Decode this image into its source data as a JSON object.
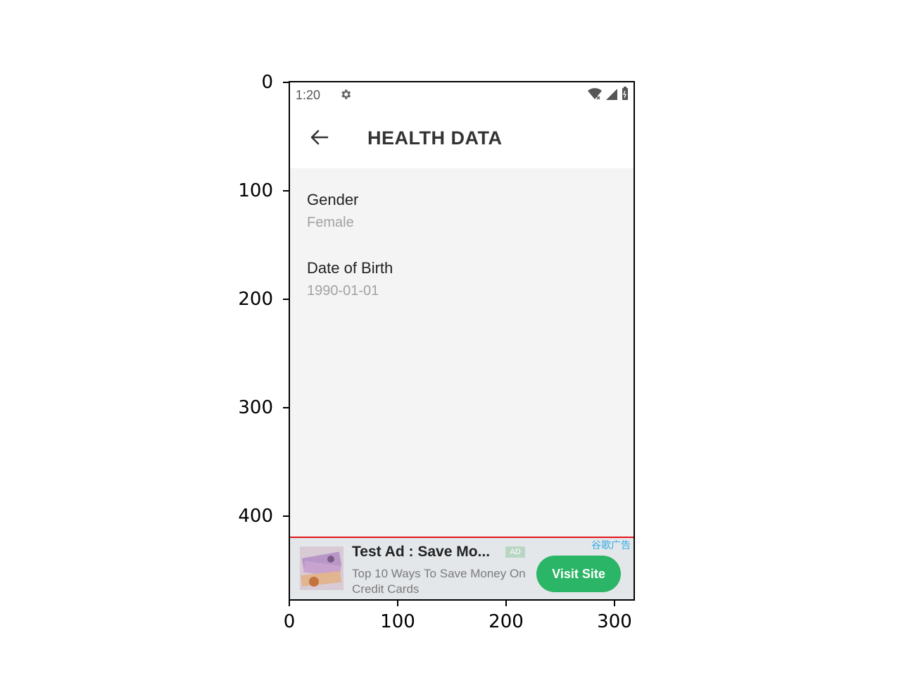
{
  "status_bar": {
    "time": "1:20",
    "icons": [
      "gear-icon",
      "wifi-icon",
      "cellular-signal-icon",
      "battery-icon"
    ]
  },
  "app_bar": {
    "title": "HEALTH DATA",
    "back_icon": "arrow-left-icon"
  },
  "fields": [
    {
      "label": "Gender",
      "value": "Female"
    },
    {
      "label": "Date of Birth",
      "value": "1990-01-01"
    }
  ],
  "ad": {
    "title": "Test Ad : Save Mo...",
    "badge": "AD",
    "tag": "谷歌广告",
    "description": "Top 10 Ways To Save Money On Credit Cards",
    "button": "Visit Site",
    "button_color": "#2bb566"
  },
  "plot_axes": {
    "y_ticks": [
      "0",
      "100",
      "200",
      "300",
      "400"
    ],
    "x_ticks": [
      "0",
      "100",
      "200",
      "300"
    ]
  }
}
